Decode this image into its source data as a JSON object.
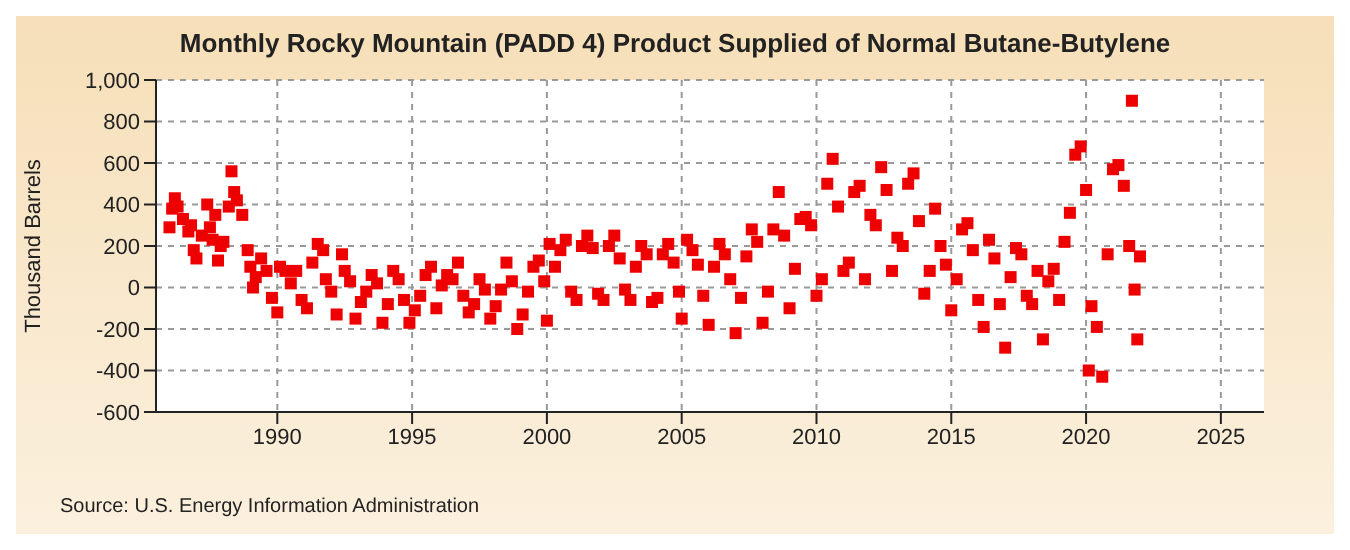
{
  "chart_data": {
    "type": "scatter",
    "title": "Monthly Rocky Mountain (PADD 4) Product Supplied of Normal Butane-Butylene",
    "ylabel": "Thousand Barrels",
    "annotations": [
      "Source: U.S. Energy Information Administration"
    ],
    "x": [
      1986.0,
      1986.1,
      1986.2,
      1986.3,
      1986.5,
      1986.7,
      1986.8,
      1986.9,
      1987.0,
      1987.2,
      1987.4,
      1987.5,
      1987.6,
      1987.7,
      1987.8,
      1987.9,
      1988.0,
      1988.2,
      1988.3,
      1988.4,
      1988.5,
      1988.7,
      1988.9,
      1989.0,
      1989.1,
      1989.2,
      1989.4,
      1989.6,
      1989.8,
      1990.0,
      1990.1,
      1990.3,
      1990.5,
      1990.7,
      1990.9,
      1991.1,
      1991.3,
      1991.5,
      1991.7,
      1991.8,
      1992.0,
      1992.2,
      1992.4,
      1992.5,
      1992.7,
      1992.9,
      1993.1,
      1993.3,
      1993.5,
      1993.7,
      1993.9,
      1994.1,
      1994.3,
      1994.5,
      1994.7,
      1994.9,
      1995.1,
      1995.3,
      1995.5,
      1995.7,
      1995.9,
      1996.1,
      1996.3,
      1996.5,
      1996.7,
      1996.9,
      1997.1,
      1997.3,
      1997.5,
      1997.7,
      1997.9,
      1998.1,
      1998.3,
      1998.5,
      1998.7,
      1998.9,
      1999.1,
      1999.3,
      1999.5,
      1999.7,
      1999.9,
      2000.0,
      2000.1,
      2000.3,
      2000.5,
      2000.7,
      2000.9,
      2001.1,
      2001.3,
      2001.5,
      2001.7,
      2001.9,
      2002.1,
      2002.3,
      2002.5,
      2002.7,
      2002.9,
      2003.1,
      2003.3,
      2003.5,
      2003.7,
      2003.9,
      2004.1,
      2004.3,
      2004.5,
      2004.7,
      2004.9,
      2005.0,
      2005.2,
      2005.4,
      2005.6,
      2005.8,
      2006.0,
      2006.2,
      2006.4,
      2006.6,
      2006.8,
      2007.0,
      2007.2,
      2007.4,
      2007.6,
      2007.8,
      2008.0,
      2008.2,
      2008.4,
      2008.6,
      2008.8,
      2009.0,
      2009.2,
      2009.4,
      2009.6,
      2009.8,
      2010.0,
      2010.2,
      2010.4,
      2010.6,
      2010.8,
      2011.0,
      2011.2,
      2011.4,
      2011.6,
      2011.8,
      2012.0,
      2012.2,
      2012.4,
      2012.6,
      2012.8,
      2013.0,
      2013.2,
      2013.4,
      2013.6,
      2013.8,
      2014.0,
      2014.2,
      2014.4,
      2014.6,
      2014.8,
      2015.0,
      2015.2,
      2015.4,
      2015.6,
      2015.8,
      2016.0,
      2016.2,
      2016.4,
      2016.6,
      2016.8,
      2017.0,
      2017.2,
      2017.4,
      2017.6,
      2017.8,
      2018.0,
      2018.2,
      2018.4,
      2018.6,
      2018.8,
      2019.0,
      2019.2,
      2019.4,
      2019.6,
      2019.8,
      2020.0,
      2020.1,
      2020.2,
      2020.4,
      2020.6,
      2020.8,
      2021.0,
      2021.2,
      2021.4,
      2021.6,
      2021.7,
      2021.8,
      2021.9,
      2022.0
    ],
    "series": [
      {
        "color": "#ee0000",
        "values": [
          290,
          380,
          430,
          390,
          330,
          270,
          300,
          180,
          140,
          250,
          400,
          290,
          230,
          350,
          130,
          200,
          220,
          390,
          560,
          460,
          420,
          350,
          180,
          100,
          0,
          50,
          140,
          80,
          -50,
          -120,
          100,
          80,
          20,
          80,
          -60,
          -100,
          120,
          210,
          180,
          40,
          -20,
          -130,
          160,
          80,
          30,
          -150,
          -70,
          -20,
          60,
          20,
          -170,
          -80,
          80,
          40,
          -60,
          -170,
          -110,
          -40,
          60,
          100,
          -100,
          10,
          60,
          40,
          120,
          -40,
          -120,
          -80,
          40,
          -10,
          -150,
          -90,
          -10,
          120,
          30,
          -200,
          -130,
          -20,
          100,
          130,
          30,
          -160,
          210,
          100,
          180,
          230,
          -20,
          -60,
          200,
          250,
          190,
          -30,
          -60,
          200,
          250,
          140,
          -10,
          -60,
          100,
          200,
          160,
          -70,
          -50,
          160,
          210,
          120,
          -20,
          -150,
          230,
          180,
          110,
          -40,
          -180,
          100,
          210,
          160,
          40,
          -220,
          -50,
          150,
          280,
          220,
          -170,
          -20,
          280,
          460,
          250,
          -100,
          90,
          330,
          340,
          300,
          -40,
          40,
          500,
          620,
          390,
          80,
          120,
          460,
          490,
          40,
          350,
          300,
          580,
          470,
          80,
          240,
          200,
          500,
          550,
          320,
          -30,
          80,
          380,
          200,
          110,
          -110,
          40,
          280,
          310,
          180,
          -60,
          -190,
          230,
          140,
          -80,
          -290,
          50,
          190,
          160,
          -40,
          -80,
          80,
          -250,
          30,
          90,
          -60,
          220,
          360,
          640,
          680,
          470,
          -400,
          -90,
          -190,
          -430,
          160,
          570,
          590,
          490,
          200,
          900,
          -10,
          -250,
          150
        ]
      }
    ],
    "xlim": [
      1985.5,
      2026.6
    ],
    "xticks": [
      1990,
      1995,
      2000,
      2005,
      2010,
      2015,
      2020,
      2025
    ],
    "ylim": [
      -600,
      1000
    ],
    "yticks": [
      -600,
      -400,
      -200,
      0,
      200,
      400,
      600,
      800,
      {
        "value": 1000,
        "label": "1,000"
      }
    ],
    "grid": true,
    "marker": "square"
  }
}
